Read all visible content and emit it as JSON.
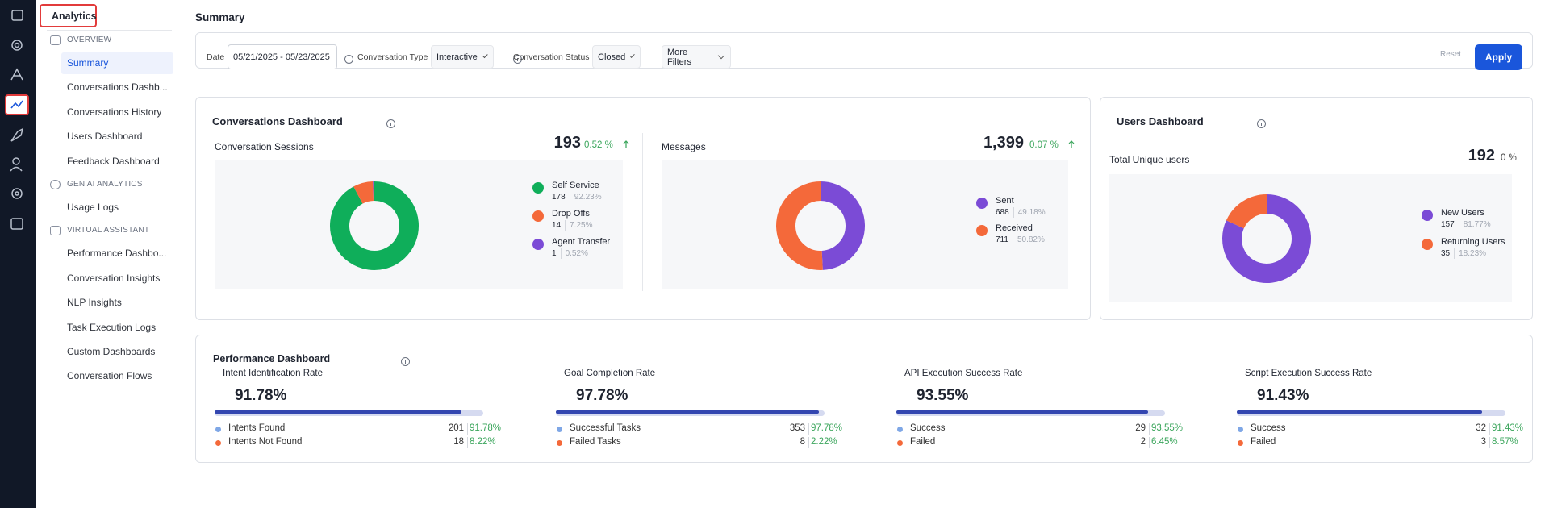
{
  "sidebar": {
    "title": "Analytics",
    "sections": [
      {
        "title": "OVERVIEW",
        "items": [
          "Summary",
          "Conversations Dashb...",
          "Conversations History",
          "Users Dashboard",
          "Feedback Dashboard"
        ]
      },
      {
        "title": "GEN AI ANALYTICS",
        "items": [
          "Usage Logs"
        ]
      },
      {
        "title": "VIRTUAL ASSISTANT",
        "items": [
          "Performance Dashbo...",
          "Conversation Insights",
          "NLP Insights",
          "Task Execution Logs",
          "Custom Dashboards",
          "Conversation Flows"
        ]
      }
    ]
  },
  "header": {
    "title": "Summary"
  },
  "filters": {
    "date_label": "Date",
    "date_value": "05/21/2025 - 05/23/2025",
    "type_label": "Conversation Type",
    "type_value": "Interactive",
    "status_label": "Conversation Status",
    "status_value": "Closed",
    "more": "More Filters",
    "reset": "Reset",
    "apply": "Apply"
  },
  "conversations_dashboard": {
    "title": "Conversations Dashboard",
    "panels": [
      {
        "title": "Conversation Sessions",
        "total": "193",
        "change": "0.52 %",
        "segments": [
          {
            "name": "Self Service",
            "color": "#0fae5a",
            "value": 178,
            "percent": "92.23%"
          },
          {
            "name": "Drop Offs",
            "color": "#f4693a",
            "value": 14,
            "percent": "7.25%"
          },
          {
            "name": "Agent Transfer",
            "color": "#7b4bd6",
            "value": 1,
            "percent": "0.52%"
          }
        ]
      },
      {
        "title": "Messages",
        "total": "1,399",
        "change": "0.07 %",
        "segments": [
          {
            "name": "Sent",
            "color": "#7b4bd6",
            "value": 688,
            "percent": "49.18%"
          },
          {
            "name": "Received",
            "color": "#f4693a",
            "value": 711,
            "percent": "50.82%"
          }
        ]
      }
    ]
  },
  "users_dashboard": {
    "title": "Users Dashboard",
    "panel": {
      "title": "Total Unique users",
      "total": "192",
      "change": "0 %",
      "segments": [
        {
          "name": "New Users",
          "color": "#7b4bd6",
          "value": 157,
          "percent": "81.77%"
        },
        {
          "name": "Returning Users",
          "color": "#f4693a",
          "value": 35,
          "percent": "18.23%"
        }
      ]
    }
  },
  "performance_dashboard": {
    "title": "Performance Dashboard",
    "metrics": [
      {
        "title": "Intent Identification Rate",
        "rate": {
          "value": 91.78,
          "label": "91.78%"
        },
        "rows": [
          {
            "name": "Intents Found",
            "count": 201,
            "percent": "91.78%"
          },
          {
            "name": "Intents Not Found",
            "count": 18,
            "percent": "8.22%"
          }
        ]
      },
      {
        "title": "Goal Completion Rate",
        "rate": {
          "value": 97.78,
          "label": "97.78%"
        },
        "rows": [
          {
            "name": "Successful Tasks",
            "count": 353,
            "percent": "97.78%"
          },
          {
            "name": "Failed Tasks",
            "count": 8,
            "percent": "2.22%"
          }
        ]
      },
      {
        "title": "API Execution Success Rate",
        "rate": {
          "value": 93.55,
          "label": "93.55%"
        },
        "rows": [
          {
            "name": "Success",
            "count": 29,
            "percent": "93.55%"
          },
          {
            "name": "Failed",
            "count": 2,
            "percent": "6.45%"
          }
        ]
      },
      {
        "title": "Script Execution Success Rate",
        "rate": {
          "value": 91.43,
          "label": "91.43%"
        },
        "rows": [
          {
            "name": "Success",
            "count": 32,
            "percent": "91.43%"
          },
          {
            "name": "Failed",
            "count": 3,
            "percent": "8.57%"
          }
        ]
      }
    ]
  }
}
